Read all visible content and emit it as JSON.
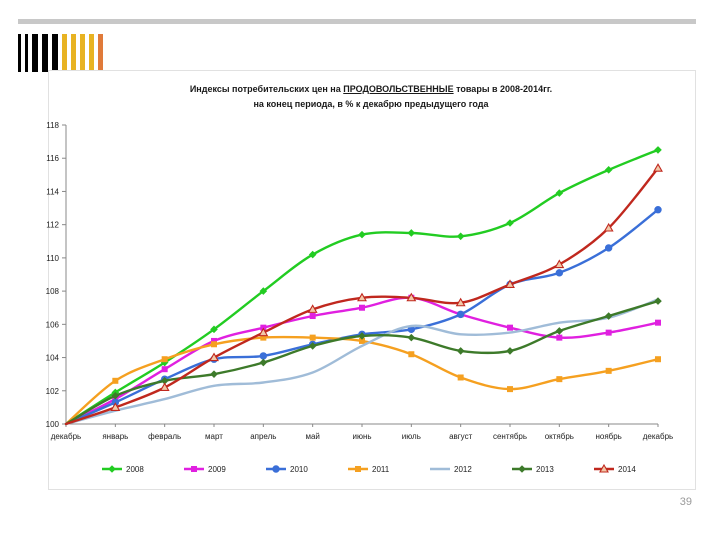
{
  "slide": {
    "page_number": "39",
    "top_bar_colors": [
      "#000000",
      "#000000",
      "#000000",
      "#000000",
      "#000000",
      "#e8b322",
      "#e8b322",
      "#e8b322",
      "#e8b322",
      "#e07a3a"
    ]
  },
  "chart_data": {
    "type": "line",
    "title_part1": "Индексы потребительских цен на ",
    "title_part2": "ПРОДОВОЛЬСТВЕННЫЕ",
    "title_part3": " товары в 2008-2014гг.",
    "subtitle": "на конец периода, в % к декабрю предыдущего года",
    "categories": [
      "декабрь",
      "январь",
      "февраль",
      "март",
      "апрель",
      "май",
      "июнь",
      "июль",
      "август",
      "сентябрь",
      "октябрь",
      "ноябрь",
      "декабрь"
    ],
    "y_ticks": [
      "100",
      "102",
      "104",
      "106",
      "108",
      "110",
      "112",
      "114",
      "116",
      "118"
    ],
    "ylim": [
      100,
      118
    ],
    "legend_position": "bottom",
    "grid": false,
    "series": [
      {
        "name": "2008",
        "color": "#22cc22",
        "marker": "diamond",
        "values": [
          100,
          101.9,
          103.7,
          105.7,
          108.0,
          110.2,
          111.4,
          111.5,
          111.3,
          112.1,
          113.9,
          115.3,
          116.5
        ]
      },
      {
        "name": "2009",
        "color": "#e020e0",
        "marker": "square",
        "values": [
          100,
          101.5,
          103.3,
          105.0,
          105.8,
          106.5,
          107.0,
          107.6,
          106.6,
          105.8,
          105.2,
          105.5,
          106.1
        ]
      },
      {
        "name": "2010",
        "color": "#3a6fd8",
        "marker": "circle",
        "values": [
          100,
          101.3,
          102.7,
          103.9,
          104.1,
          104.8,
          105.4,
          105.7,
          106.6,
          108.4,
          109.1,
          110.6,
          112.9
        ]
      },
      {
        "name": "2011",
        "color": "#f5a020",
        "marker": "square",
        "values": [
          100,
          102.6,
          103.9,
          104.8,
          105.2,
          105.2,
          105.0,
          104.2,
          102.8,
          102.1,
          102.7,
          103.2,
          103.9
        ]
      },
      {
        "name": "2012",
        "color": "#a0bcd8",
        "marker": "none",
        "values": [
          100,
          100.8,
          101.5,
          102.3,
          102.5,
          103.1,
          104.7,
          105.9,
          105.4,
          105.5,
          106.1,
          106.4,
          107.5
        ]
      },
      {
        "name": "2013",
        "color": "#3d7a2a",
        "marker": "diamond",
        "values": [
          100,
          101.7,
          102.6,
          103.0,
          103.7,
          104.7,
          105.3,
          105.2,
          104.4,
          104.4,
          105.6,
          106.5,
          107.4
        ]
      },
      {
        "name": "2014",
        "color": "#c0281e",
        "marker": "triangle",
        "values": [
          100,
          101.0,
          102.2,
          104.0,
          105.5,
          106.9,
          107.6,
          107.6,
          107.3,
          108.4,
          109.6,
          111.8,
          115.4
        ]
      }
    ]
  }
}
